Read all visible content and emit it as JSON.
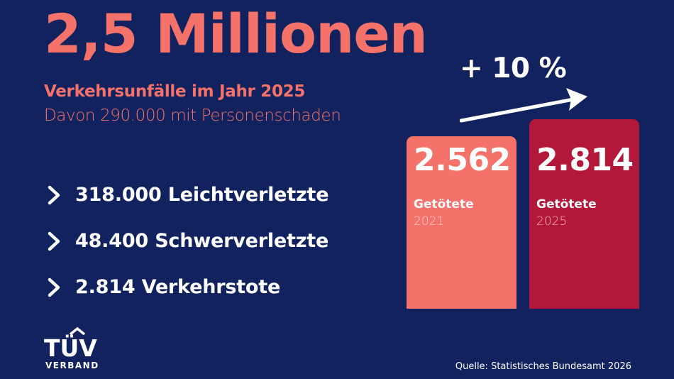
{
  "headline": "2,5 Millionen",
  "subtitle": "Verkehrsunfälle im Jahr 2025",
  "subline": "Davon 290.000 mit Personenschaden",
  "stats": [
    {
      "text": "318.000 Leichtverletzte"
    },
    {
      "text": "48.400 Schwerverletzte"
    },
    {
      "text": "2.814 Verkehrstote"
    }
  ],
  "comparison": {
    "increase": "+ 10 %",
    "bars": [
      {
        "value": "2.562",
        "label": "Getötete",
        "year": "2021",
        "color": "#f4726a",
        "count": 2562
      },
      {
        "value": "2.814",
        "label": "Getötete",
        "year": "2025",
        "color": "#b3183a",
        "count": 2814
      }
    ]
  },
  "logo": {
    "mark": "TÜV",
    "sub": "VERBAND"
  },
  "source": "Quelle: Statistisches Bundesamt 2026",
  "colors": {
    "background": "#11225e",
    "accent": "#f4726a",
    "accent_dark": "#b3183a",
    "text": "#ffffff"
  }
}
